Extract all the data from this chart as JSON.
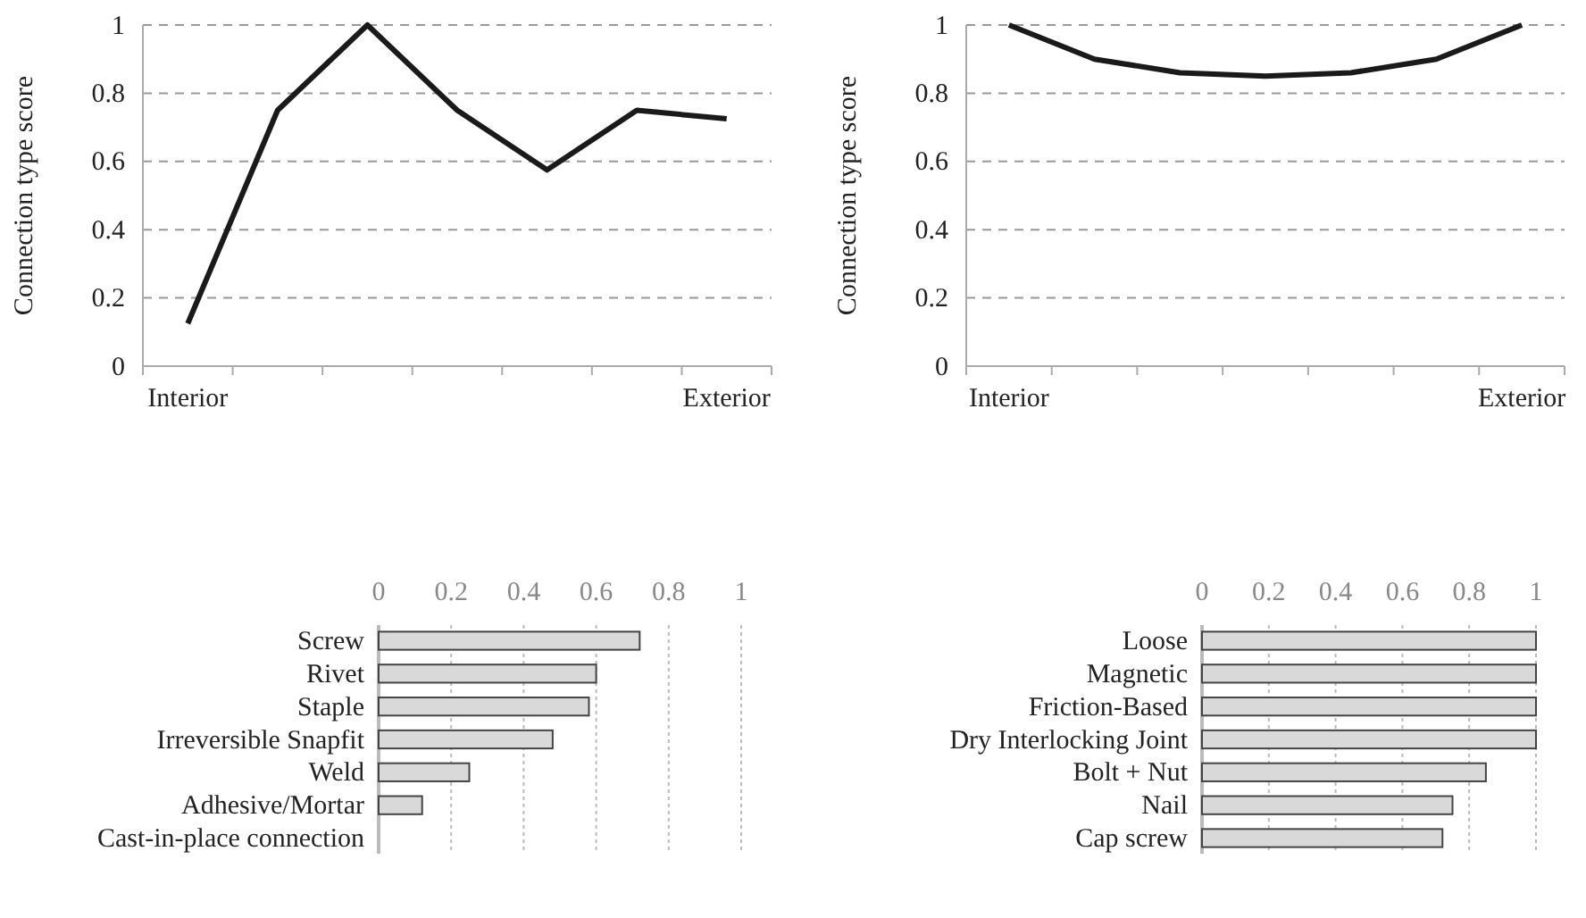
{
  "chart_data": [
    {
      "type": "line",
      "ylabel": "Connection type score",
      "categories": [
        "Interior",
        null,
        null,
        null,
        null,
        null,
        "Exterior"
      ],
      "series": [
        {
          "color": "#1a1a1a",
          "values": [
            0.125,
            0.75,
            1,
            0.75,
            0.575,
            0.75,
            0.725
          ]
        }
      ],
      "ylim": [
        0,
        1
      ],
      "yticks": [
        0,
        0.2,
        0.4,
        0.6,
        0.8,
        1
      ],
      "grid": "y",
      "marker": "none",
      "line_style": "solid"
    },
    {
      "type": "line",
      "ylabel": "Connection type score",
      "categories": [
        "Interior",
        null,
        null,
        null,
        null,
        null,
        "Exterior"
      ],
      "series": [
        {
          "color": "#1a1a1a",
          "values": [
            1,
            0.9,
            0.86,
            0.85,
            0.86,
            0.9,
            1
          ]
        }
      ],
      "ylim": [
        0,
        1
      ],
      "yticks": [
        0,
        0.2,
        0.4,
        0.6,
        0.8,
        1
      ],
      "grid": "y",
      "marker": "none",
      "line_style": "solid"
    },
    {
      "type": "bar",
      "orientation": "horizontal",
      "categories": [
        "Screw",
        "Rivet",
        "Staple",
        "Irreversible Snapfit",
        "Weld",
        "Adhesive/Mortar",
        "Cast-in-place connection"
      ],
      "values": [
        0.72,
        0.6,
        0.58,
        0.48,
        0.25,
        0.12,
        0
      ],
      "color": "#d9d9d9",
      "xlim": [
        0,
        1
      ],
      "xticks": [
        0,
        0.2,
        0.4,
        0.6,
        0.8,
        1
      ],
      "grid": "x"
    },
    {
      "type": "bar",
      "orientation": "horizontal",
      "categories": [
        "Loose",
        "Magnetic",
        "Friction-Based",
        "Dry Interlocking Joint",
        "Bolt + Nut",
        "Nail",
        "Cap screw"
      ],
      "values": [
        1,
        1,
        1,
        1,
        0.85,
        0.75,
        0.72
      ],
      "color": "#d9d9d9",
      "xlim": [
        0,
        1
      ],
      "xticks": [
        0,
        0.2,
        0.4,
        0.6,
        0.8,
        1
      ],
      "grid": "x"
    }
  ]
}
